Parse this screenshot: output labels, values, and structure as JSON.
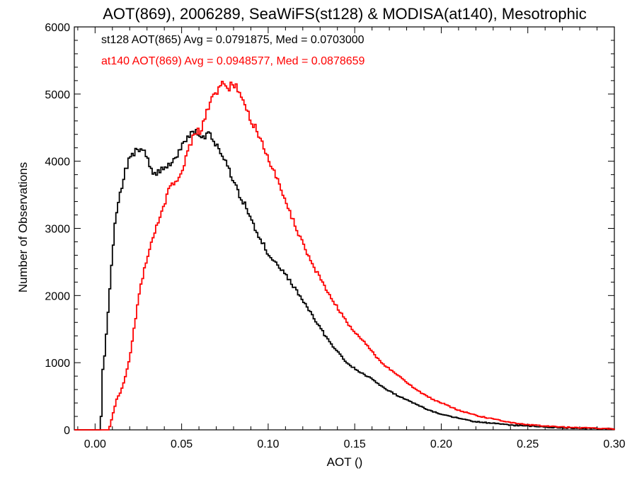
{
  "chart_data": {
    "type": "line",
    "title": "AOT(869), 2006289, SeaWiFS(st128) & MODISA(at140), Mesotrophic",
    "xlabel": "AOT ()",
    "ylabel": "Number of Observations",
    "xlim": [
      -0.012,
      0.3
    ],
    "ylim": [
      0,
      6000
    ],
    "xticks": [
      0.0,
      0.05,
      0.1,
      0.15,
      0.2,
      0.25,
      0.3
    ],
    "xtick_labels": [
      "0.00",
      "0.05",
      "0.10",
      "0.15",
      "0.20",
      "0.25",
      "0.30"
    ],
    "yticks": [
      0,
      1000,
      2000,
      3000,
      4000,
      5000,
      6000
    ],
    "ytick_labels": [
      "0",
      "1000",
      "2000",
      "3000",
      "4000",
      "5000",
      "6000"
    ],
    "grid": false,
    "legend_placement": "top-left",
    "series": [
      {
        "name": "st128 AOT(865) Avg = 0.0791875, Med = 0.0703000",
        "color": "#000000",
        "x": [
          -0.012,
          0.002,
          0.003,
          0.004,
          0.005,
          0.007,
          0.009,
          0.011,
          0.013,
          0.015,
          0.017,
          0.019,
          0.021,
          0.023,
          0.025,
          0.027,
          0.029,
          0.031,
          0.033,
          0.035,
          0.037,
          0.04,
          0.043,
          0.046,
          0.049,
          0.052,
          0.055,
          0.058,
          0.06,
          0.062,
          0.064,
          0.066,
          0.068,
          0.07,
          0.072,
          0.074,
          0.076,
          0.078,
          0.08,
          0.082,
          0.084,
          0.086,
          0.088,
          0.09,
          0.092,
          0.094,
          0.096,
          0.098,
          0.1,
          0.105,
          0.11,
          0.115,
          0.12,
          0.125,
          0.13,
          0.135,
          0.14,
          0.145,
          0.15,
          0.155,
          0.16,
          0.165,
          0.17,
          0.175,
          0.18,
          0.185,
          0.19,
          0.195,
          0.2,
          0.205,
          0.21,
          0.215,
          0.22,
          0.23,
          0.24,
          0.25,
          0.26,
          0.27,
          0.28,
          0.29,
          0.3
        ],
        "y": [
          0,
          0,
          200,
          900,
          1100,
          1750,
          2450,
          3050,
          3400,
          3600,
          3850,
          4000,
          4100,
          4150,
          4100,
          4200,
          4100,
          3900,
          3850,
          3800,
          3850,
          3900,
          3950,
          4050,
          4200,
          4300,
          4400,
          4450,
          4400,
          4350,
          4400,
          4450,
          4300,
          4250,
          4150,
          4050,
          3950,
          3800,
          3700,
          3550,
          3450,
          3350,
          3250,
          3150,
          3000,
          2900,
          2800,
          2700,
          2600,
          2450,
          2300,
          2100,
          1900,
          1700,
          1500,
          1300,
          1150,
          1000,
          900,
          820,
          750,
          650,
          570,
          500,
          440,
          380,
          320,
          270,
          230,
          200,
          170,
          140,
          120,
          95,
          70,
          55,
          40,
          30,
          25,
          20,
          15
        ]
      },
      {
        "name": "at140 AOT(869) Avg = 0.0948577, Med = 0.0878659",
        "color": "#ff0000",
        "x": [
          -0.012,
          0.007,
          0.008,
          0.01,
          0.012,
          0.014,
          0.016,
          0.018,
          0.02,
          0.022,
          0.024,
          0.026,
          0.028,
          0.03,
          0.032,
          0.034,
          0.036,
          0.038,
          0.04,
          0.042,
          0.044,
          0.046,
          0.048,
          0.05,
          0.052,
          0.054,
          0.056,
          0.058,
          0.06,
          0.062,
          0.064,
          0.066,
          0.068,
          0.07,
          0.072,
          0.074,
          0.076,
          0.078,
          0.08,
          0.082,
          0.084,
          0.086,
          0.088,
          0.09,
          0.092,
          0.094,
          0.096,
          0.098,
          0.1,
          0.105,
          0.11,
          0.115,
          0.12,
          0.125,
          0.13,
          0.135,
          0.14,
          0.145,
          0.15,
          0.155,
          0.16,
          0.165,
          0.17,
          0.175,
          0.18,
          0.185,
          0.19,
          0.195,
          0.2,
          0.205,
          0.21,
          0.215,
          0.22,
          0.23,
          0.24,
          0.25,
          0.26,
          0.27,
          0.28,
          0.29,
          0.3
        ],
        "y": [
          0,
          0,
          50,
          250,
          450,
          550,
          700,
          900,
          1150,
          1500,
          1850,
          2150,
          2400,
          2600,
          2800,
          2950,
          3100,
          3250,
          3400,
          3550,
          3650,
          3700,
          3800,
          3900,
          4050,
          4200,
          4350,
          4450,
          4450,
          4550,
          4750,
          4900,
          4950,
          5050,
          5150,
          5150,
          5050,
          5150,
          5150,
          5050,
          4950,
          4850,
          4700,
          4600,
          4500,
          4350,
          4250,
          4100,
          4000,
          3700,
          3350,
          3050,
          2750,
          2450,
          2250,
          2000,
          1800,
          1600,
          1450,
          1300,
          1150,
          1000,
          900,
          800,
          700,
          600,
          520,
          450,
          400,
          340,
          290,
          250,
          210,
          160,
          110,
          75,
          55,
          40,
          30,
          22,
          15
        ]
      }
    ]
  }
}
